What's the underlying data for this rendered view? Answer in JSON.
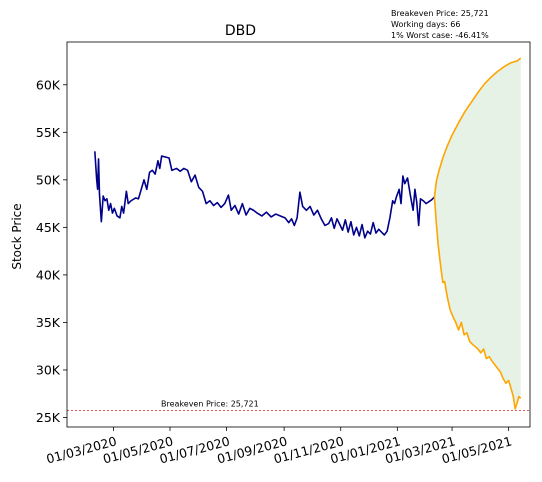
{
  "chart_data": {
    "type": "line",
    "title": "DBD",
    "ylabel": "Stock Price",
    "xlabel": "",
    "ylim": [
      24000,
      64500
    ],
    "xlim": [
      "2020-01-11",
      "2021-05-24"
    ],
    "yticks": [
      25000,
      30000,
      35000,
      40000,
      45000,
      50000,
      55000,
      60000
    ],
    "ytick_labels": [
      "25K",
      "30K",
      "35K",
      "40K",
      "45K",
      "50K",
      "55K",
      "60K"
    ],
    "xticks": [
      "2020-03-01",
      "2020-05-01",
      "2020-07-01",
      "2020-09-01",
      "2020-11-01",
      "2021-01-01",
      "2021-03-01",
      "2021-05-01"
    ],
    "xtick_labels": [
      "01/03/2020",
      "01/05/2020",
      "01/07/2020",
      "01/09/2020",
      "01/11/2020",
      "01/01/2021",
      "01/03/2021",
      "01/05/2021"
    ],
    "grid": false,
    "info_box": {
      "line1": "Breakeven Price: 25,721",
      "line2": "Working days: 66",
      "line3": "1% Worst case: -46.41%"
    },
    "breakeven": {
      "value": 25721,
      "label": "Breakeven Price: 25,721",
      "color": "#d62728"
    },
    "colors": {
      "history": "#00008b",
      "projection": "#ffa500",
      "band_fill": "#e5f2e5"
    },
    "series": [
      {
        "key": "history",
        "points": [
          [
            "2020-02-10",
            53000
          ],
          [
            "2020-02-12",
            50000
          ],
          [
            "2020-02-13",
            49000
          ],
          [
            "2020-02-14",
            52200
          ],
          [
            "2020-02-15",
            48500
          ],
          [
            "2020-02-17",
            45600
          ],
          [
            "2020-02-19",
            48300
          ],
          [
            "2020-02-21",
            47800
          ],
          [
            "2020-02-23",
            48000
          ],
          [
            "2020-02-25",
            46800
          ],
          [
            "2020-02-27",
            47500
          ],
          [
            "2020-02-29",
            46500
          ],
          [
            "2020-03-02",
            47000
          ],
          [
            "2020-03-05",
            46200
          ],
          [
            "2020-03-08",
            46000
          ],
          [
            "2020-03-10",
            47200
          ],
          [
            "2020-03-12",
            46500
          ],
          [
            "2020-03-15",
            48800
          ],
          [
            "2020-03-17",
            47500
          ],
          [
            "2020-03-20",
            47800
          ],
          [
            "2020-03-25",
            48100
          ],
          [
            "2020-03-28",
            48000
          ],
          [
            "2020-03-31",
            49000
          ],
          [
            "2020-04-03",
            50000
          ],
          [
            "2020-04-06",
            49000
          ],
          [
            "2020-04-09",
            50800
          ],
          [
            "2020-04-12",
            51000
          ],
          [
            "2020-04-15",
            50600
          ],
          [
            "2020-04-18",
            52000
          ],
          [
            "2020-04-20",
            51200
          ],
          [
            "2020-04-22",
            52500
          ],
          [
            "2020-04-26",
            52400
          ],
          [
            "2020-04-30",
            52300
          ],
          [
            "2020-05-03",
            51000
          ],
          [
            "2020-05-08",
            51200
          ],
          [
            "2020-05-12",
            50900
          ],
          [
            "2020-05-16",
            51200
          ],
          [
            "2020-05-20",
            51000
          ],
          [
            "2020-05-24",
            49800
          ],
          [
            "2020-05-28",
            50500
          ],
          [
            "2020-06-01",
            49200
          ],
          [
            "2020-06-05",
            48800
          ],
          [
            "2020-06-09",
            47500
          ],
          [
            "2020-06-13",
            47800
          ],
          [
            "2020-06-17",
            47300
          ],
          [
            "2020-06-21",
            47600
          ],
          [
            "2020-06-25",
            47100
          ],
          [
            "2020-06-29",
            47500
          ],
          [
            "2020-07-03",
            48400
          ],
          [
            "2020-07-06",
            46800
          ],
          [
            "2020-07-10",
            47300
          ],
          [
            "2020-07-14",
            46400
          ],
          [
            "2020-07-18",
            47500
          ],
          [
            "2020-07-22",
            46300
          ],
          [
            "2020-07-26",
            47000
          ],
          [
            "2020-07-30",
            46800
          ],
          [
            "2020-08-03",
            46500
          ],
          [
            "2020-08-08",
            46200
          ],
          [
            "2020-08-13",
            46600
          ],
          [
            "2020-08-18",
            46100
          ],
          [
            "2020-08-23",
            46400
          ],
          [
            "2020-08-28",
            46200
          ],
          [
            "2020-09-02",
            46000
          ],
          [
            "2020-09-06",
            45500
          ],
          [
            "2020-09-09",
            45900
          ],
          [
            "2020-09-12",
            45200
          ],
          [
            "2020-09-15",
            46000
          ],
          [
            "2020-09-18",
            48700
          ],
          [
            "2020-09-21",
            47200
          ],
          [
            "2020-09-25",
            46800
          ],
          [
            "2020-09-29",
            47200
          ],
          [
            "2020-10-03",
            46300
          ],
          [
            "2020-10-07",
            46800
          ],
          [
            "2020-10-11",
            45900
          ],
          [
            "2020-10-15",
            45200
          ],
          [
            "2020-10-19",
            45400
          ],
          [
            "2020-10-22",
            46000
          ],
          [
            "2020-10-25",
            44900
          ],
          [
            "2020-10-28",
            45900
          ],
          [
            "2020-10-31",
            45300
          ],
          [
            "2020-11-03",
            44700
          ],
          [
            "2020-11-06",
            45800
          ],
          [
            "2020-11-09",
            44500
          ],
          [
            "2020-11-12",
            45600
          ],
          [
            "2020-11-15",
            44200
          ],
          [
            "2020-11-18",
            45000
          ],
          [
            "2020-11-21",
            44100
          ],
          [
            "2020-11-24",
            45300
          ],
          [
            "2020-11-27",
            43900
          ],
          [
            "2020-11-30",
            44600
          ],
          [
            "2020-12-03",
            44300
          ],
          [
            "2020-12-06",
            45500
          ],
          [
            "2020-12-09",
            44400
          ],
          [
            "2020-12-12",
            44800
          ],
          [
            "2020-12-15",
            44500
          ],
          [
            "2020-12-18",
            44200
          ],
          [
            "2020-12-21",
            44600
          ],
          [
            "2020-12-24",
            46000
          ],
          [
            "2020-12-27",
            47800
          ],
          [
            "2020-12-29",
            47500
          ],
          [
            "2020-12-31",
            48200
          ],
          [
            "2021-01-03",
            49000
          ],
          [
            "2021-01-05",
            47500
          ],
          [
            "2021-01-07",
            50400
          ],
          [
            "2021-01-09",
            49600
          ],
          [
            "2021-01-12",
            50200
          ],
          [
            "2021-01-15",
            48400
          ],
          [
            "2021-01-18",
            46800
          ],
          [
            "2021-01-20",
            49000
          ],
          [
            "2021-01-22",
            47600
          ],
          [
            "2021-01-24",
            45200
          ],
          [
            "2021-01-26",
            48000
          ],
          [
            "2021-01-29",
            47800
          ],
          [
            "2021-02-01",
            47500
          ],
          [
            "2021-02-04",
            47700
          ],
          [
            "2021-02-07",
            47900
          ],
          [
            "2021-02-10",
            48200
          ]
        ]
      },
      {
        "key": "projection_upper",
        "points": [
          [
            "2021-02-10",
            48200
          ],
          [
            "2021-02-12",
            49800
          ],
          [
            "2021-02-15",
            51000
          ],
          [
            "2021-02-19",
            52300
          ],
          [
            "2021-02-24",
            53600
          ],
          [
            "2021-03-01",
            54700
          ],
          [
            "2021-03-08",
            56000
          ],
          [
            "2021-03-15",
            57200
          ],
          [
            "2021-03-22",
            58200
          ],
          [
            "2021-03-29",
            59200
          ],
          [
            "2021-04-05",
            60100
          ],
          [
            "2021-04-12",
            60800
          ],
          [
            "2021-04-19",
            61400
          ],
          [
            "2021-04-26",
            61900
          ],
          [
            "2021-05-03",
            62300
          ],
          [
            "2021-05-10",
            62500
          ],
          [
            "2021-05-14",
            62800
          ]
        ]
      },
      {
        "key": "projection_lower",
        "points": [
          [
            "2021-02-10",
            48200
          ],
          [
            "2021-02-12",
            45500
          ],
          [
            "2021-02-14",
            43200
          ],
          [
            "2021-02-16",
            41500
          ],
          [
            "2021-02-19",
            39200
          ],
          [
            "2021-02-21",
            39300
          ],
          [
            "2021-02-24",
            37600
          ],
          [
            "2021-02-27",
            36300
          ],
          [
            "2021-03-02",
            35600
          ],
          [
            "2021-03-05",
            35000
          ],
          [
            "2021-03-08",
            34200
          ],
          [
            "2021-03-11",
            35000
          ],
          [
            "2021-03-14",
            33700
          ],
          [
            "2021-03-17",
            33900
          ],
          [
            "2021-03-20",
            33000
          ],
          [
            "2021-03-24",
            32600
          ],
          [
            "2021-03-28",
            32300
          ],
          [
            "2021-04-01",
            31800
          ],
          [
            "2021-04-04",
            32200
          ],
          [
            "2021-04-07",
            31200
          ],
          [
            "2021-04-10",
            31400
          ],
          [
            "2021-04-14",
            30800
          ],
          [
            "2021-04-18",
            30300
          ],
          [
            "2021-04-22",
            29800
          ],
          [
            "2021-04-25",
            29100
          ],
          [
            "2021-04-28",
            28600
          ],
          [
            "2021-05-01",
            28900
          ],
          [
            "2021-05-04",
            27900
          ],
          [
            "2021-05-06",
            27200
          ],
          [
            "2021-05-08",
            25900
          ],
          [
            "2021-05-10",
            26500
          ],
          [
            "2021-05-12",
            27200
          ],
          [
            "2021-05-14",
            27000
          ]
        ]
      }
    ]
  }
}
